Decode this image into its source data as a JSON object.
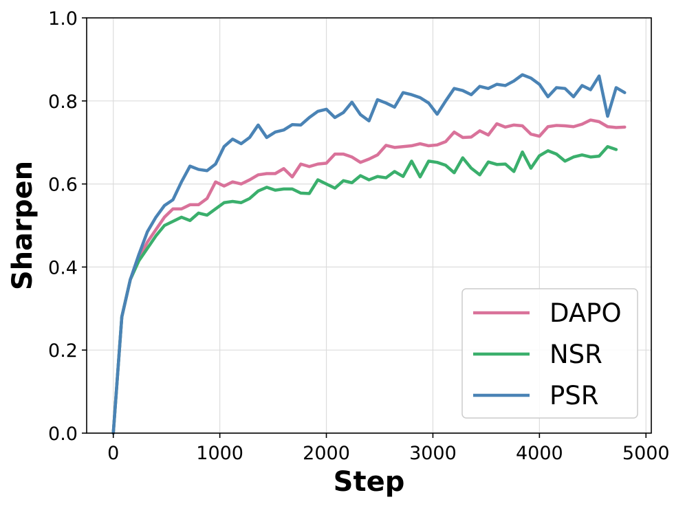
{
  "chart_data": {
    "type": "line",
    "title": "",
    "xlabel": "Step",
    "ylabel": "Sharpen",
    "xlim": [
      -250,
      5050
    ],
    "ylim": [
      0.0,
      1.0
    ],
    "xticks": [
      0,
      1000,
      2000,
      3000,
      4000,
      5000
    ],
    "xtick_labels": [
      "0",
      "1000",
      "2000",
      "3000",
      "4000",
      "5000"
    ],
    "yticks": [
      0.0,
      0.2,
      0.4,
      0.6,
      0.8,
      1.0
    ],
    "ytick_labels": [
      "0.0",
      "0.2",
      "0.4",
      "0.6",
      "0.8",
      "1.0"
    ],
    "grid": true,
    "legend_position": "lower-right",
    "series": [
      {
        "name": "DAPO",
        "color": "#d9729a",
        "x": [
          0,
          80,
          160,
          240,
          320,
          400,
          480,
          560,
          640,
          720,
          800,
          880,
          960,
          1040,
          1120,
          1200,
          1280,
          1360,
          1440,
          1520,
          1600,
          1680,
          1760,
          1840,
          1920,
          2000,
          2080,
          2160,
          2240,
          2320,
          2400,
          2480,
          2560,
          2640,
          2720,
          2800,
          2880,
          2960,
          3040,
          3120,
          3200,
          3280,
          3360,
          3440,
          3520,
          3600,
          3680,
          3760,
          3840,
          3920,
          4000,
          4080,
          4160,
          4240,
          4320,
          4400,
          4480,
          4560,
          4640,
          4720,
          4800
        ],
        "y": [
          0.0,
          0.28,
          0.37,
          0.42,
          0.46,
          0.49,
          0.52,
          0.54,
          0.54,
          0.55,
          0.55,
          0.565,
          0.605,
          0.595,
          0.605,
          0.6,
          0.61,
          0.622,
          0.625,
          0.625,
          0.637,
          0.617,
          0.648,
          0.642,
          0.648,
          0.65,
          0.672,
          0.672,
          0.665,
          0.652,
          0.66,
          0.67,
          0.693,
          0.688,
          0.69,
          0.692,
          0.697,
          0.692,
          0.694,
          0.702,
          0.725,
          0.712,
          0.713,
          0.728,
          0.718,
          0.745,
          0.737,
          0.742,
          0.74,
          0.72,
          0.715,
          0.738,
          0.741,
          0.74,
          0.738,
          0.744,
          0.754,
          0.75,
          0.738,
          0.736,
          0.737
        ]
      },
      {
        "name": "NSR",
        "color": "#3aaf6c",
        "x": [
          0,
          80,
          160,
          240,
          320,
          400,
          480,
          560,
          640,
          720,
          800,
          880,
          960,
          1040,
          1120,
          1200,
          1280,
          1360,
          1440,
          1520,
          1600,
          1680,
          1760,
          1840,
          1920,
          2000,
          2080,
          2160,
          2240,
          2320,
          2400,
          2480,
          2560,
          2640,
          2720,
          2800,
          2880,
          2960,
          3040,
          3120,
          3200,
          3280,
          3360,
          3440,
          3520,
          3600,
          3680,
          3760,
          3840,
          3920,
          4000,
          4080,
          4160,
          4240,
          4320,
          4400,
          4480,
          4560,
          4640,
          4720
        ],
        "y": [
          0.0,
          0.28,
          0.37,
          0.415,
          0.445,
          0.475,
          0.5,
          0.51,
          0.52,
          0.512,
          0.53,
          0.525,
          0.54,
          0.555,
          0.558,
          0.555,
          0.565,
          0.583,
          0.592,
          0.585,
          0.588,
          0.588,
          0.578,
          0.577,
          0.61,
          0.6,
          0.59,
          0.608,
          0.603,
          0.62,
          0.61,
          0.618,
          0.615,
          0.63,
          0.618,
          0.655,
          0.617,
          0.655,
          0.652,
          0.645,
          0.627,
          0.663,
          0.638,
          0.622,
          0.653,
          0.647,
          0.648,
          0.63,
          0.677,
          0.638,
          0.668,
          0.68,
          0.672,
          0.655,
          0.665,
          0.67,
          0.665,
          0.667,
          0.69,
          0.683
        ]
      },
      {
        "name": "PSR",
        "color": "#4a83b5",
        "x": [
          0,
          80,
          160,
          240,
          320,
          400,
          480,
          560,
          640,
          720,
          800,
          880,
          960,
          1040,
          1120,
          1200,
          1280,
          1360,
          1440,
          1520,
          1600,
          1680,
          1760,
          1840,
          1920,
          2000,
          2080,
          2160,
          2240,
          2320,
          2400,
          2480,
          2560,
          2640,
          2720,
          2800,
          2880,
          2960,
          3040,
          3120,
          3200,
          3280,
          3360,
          3440,
          3520,
          3600,
          3680,
          3760,
          3840,
          3920,
          4000,
          4080,
          4160,
          4240,
          4320,
          4400,
          4480,
          4560,
          4640,
          4720,
          4800
        ],
        "y": [
          0.0,
          0.28,
          0.37,
          0.43,
          0.485,
          0.52,
          0.548,
          0.562,
          0.605,
          0.643,
          0.635,
          0.632,
          0.648,
          0.69,
          0.708,
          0.697,
          0.712,
          0.742,
          0.712,
          0.725,
          0.73,
          0.743,
          0.742,
          0.76,
          0.775,
          0.78,
          0.76,
          0.772,
          0.797,
          0.767,
          0.752,
          0.803,
          0.795,
          0.785,
          0.82,
          0.815,
          0.808,
          0.795,
          0.768,
          0.8,
          0.83,
          0.825,
          0.815,
          0.835,
          0.83,
          0.84,
          0.837,
          0.848,
          0.863,
          0.855,
          0.84,
          0.81,
          0.832,
          0.83,
          0.81,
          0.837,
          0.827,
          0.86,
          0.763,
          0.832,
          0.82
        ]
      }
    ]
  }
}
